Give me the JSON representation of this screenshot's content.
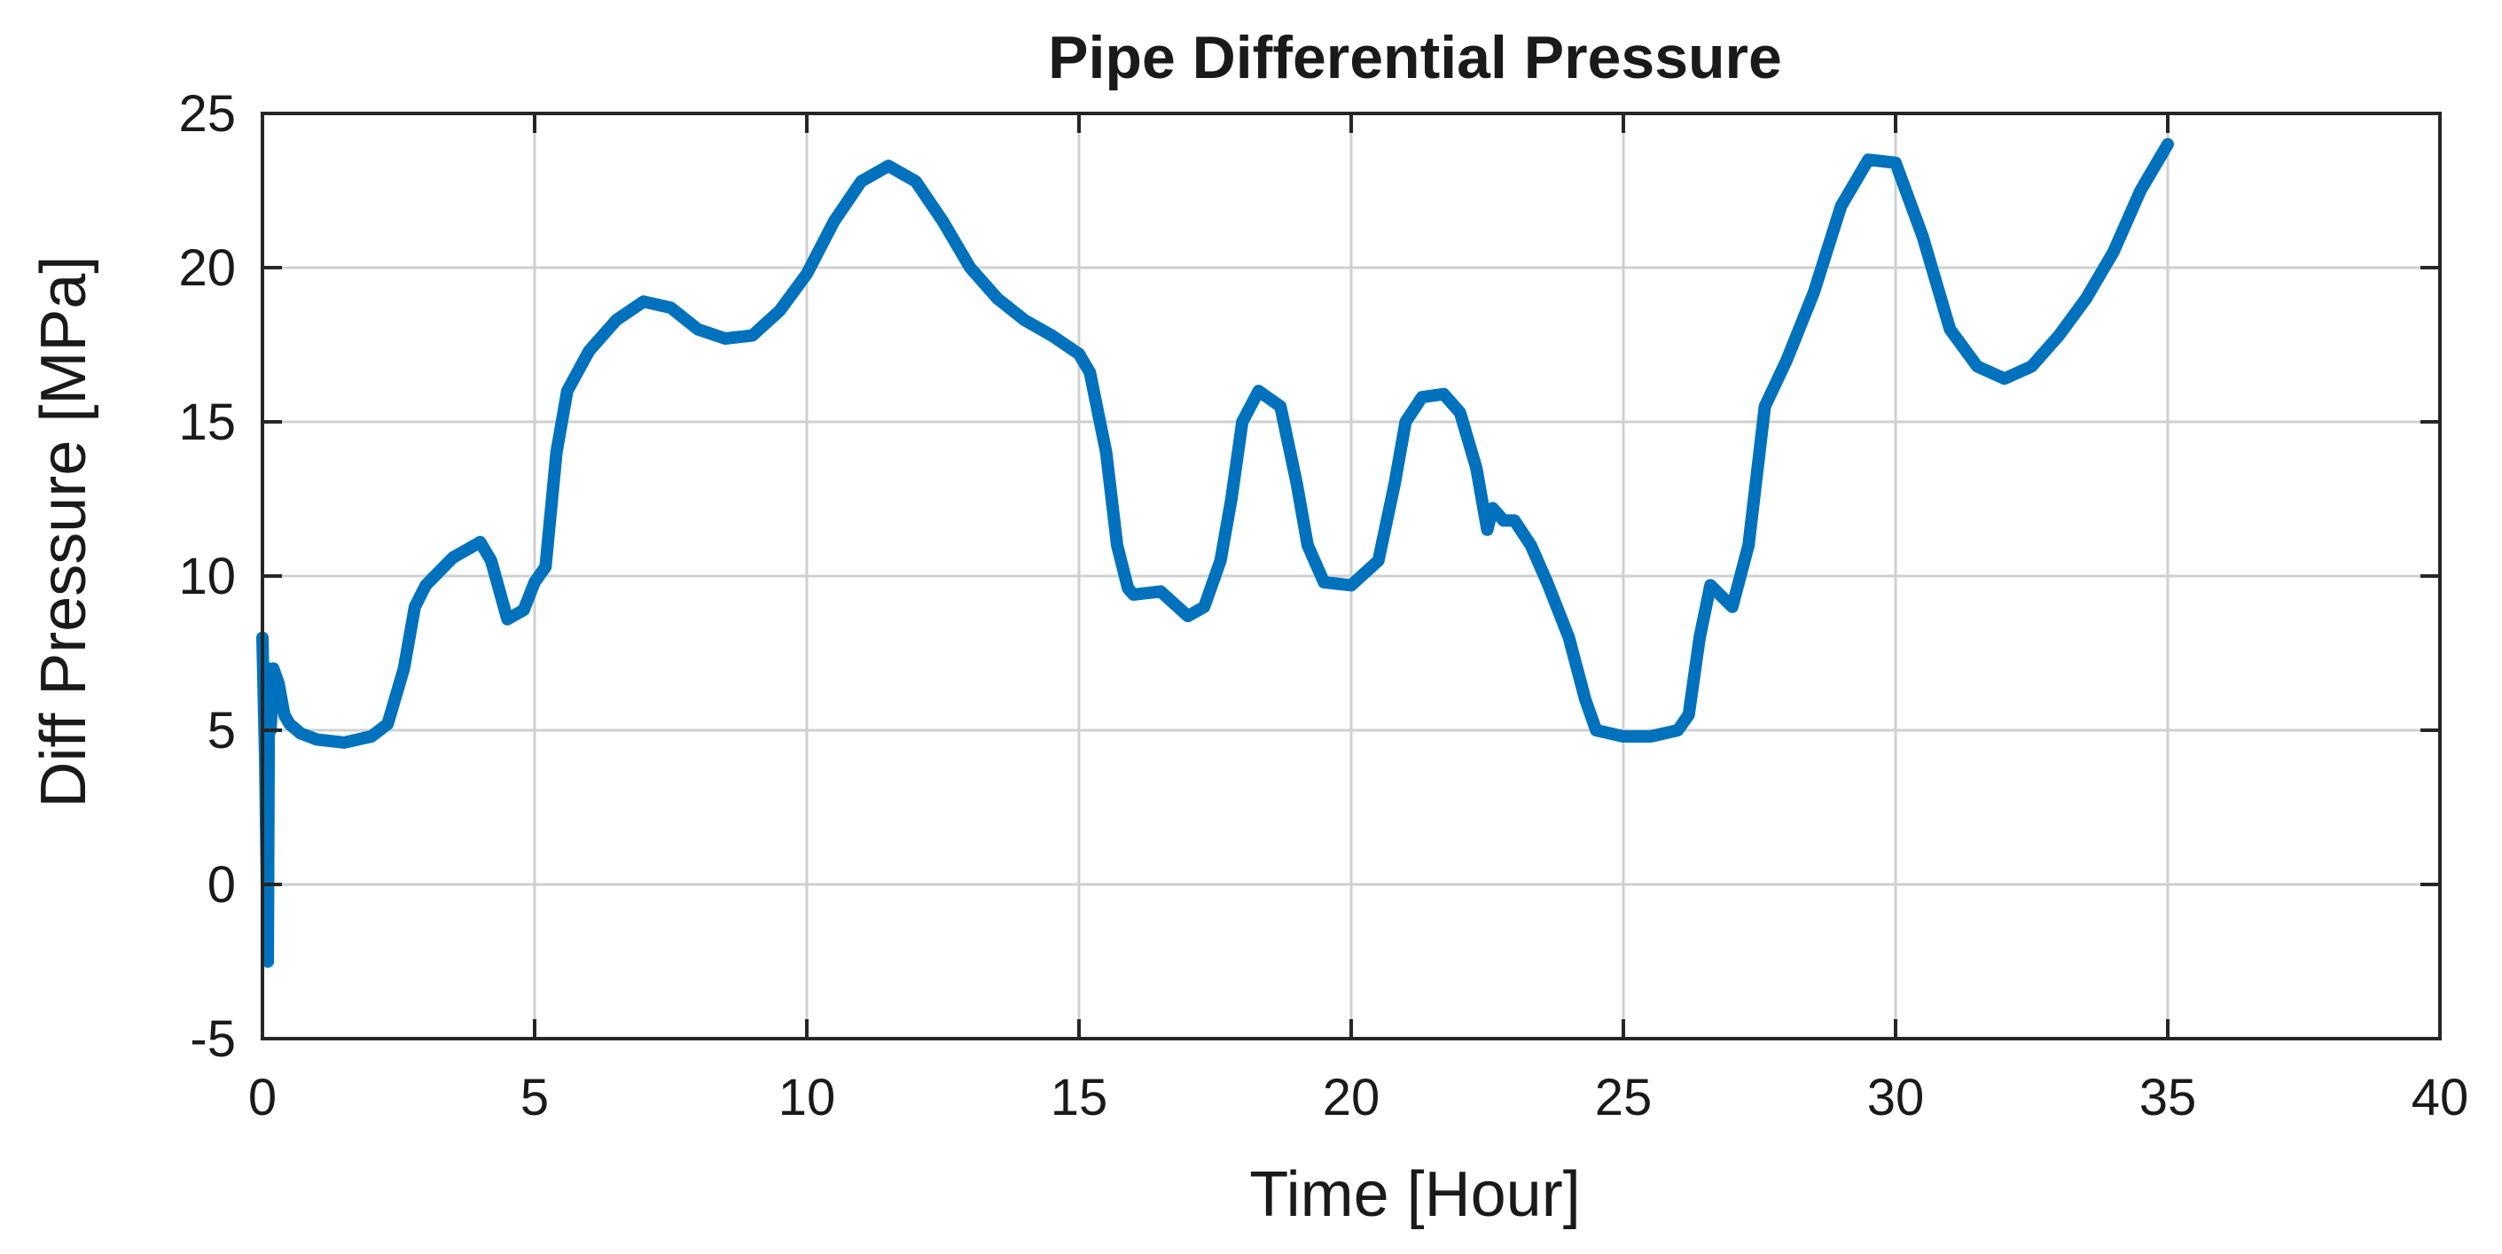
{
  "chart_data": {
    "type": "line",
    "title": "Pipe Differential Pressure",
    "xlabel": "Time [Hour]",
    "ylabel": "Diff Pressure [MPa]",
    "xlim": [
      0,
      40
    ],
    "ylim": [
      -5,
      25
    ],
    "xticks": [
      0,
      5,
      10,
      15,
      20,
      25,
      30,
      35,
      40
    ],
    "yticks": [
      -5,
      0,
      5,
      10,
      15,
      20,
      25
    ],
    "xtick_labels": [
      "0",
      "5",
      "10",
      "15",
      "20",
      "25",
      "30",
      "35",
      "40"
    ],
    "ytick_labels": [
      "-5",
      "0",
      "5",
      "10",
      "15",
      "20",
      "25"
    ],
    "grid": true,
    "series": [
      {
        "color": "#0072BD",
        "x": [
          0,
          0.05,
          0.1,
          0.12,
          0.15,
          0.2,
          0.3,
          0.4,
          0.5,
          0.7,
          1.0,
          1.5,
          2.0,
          2.3,
          2.6,
          2.8,
          3.0,
          3.5,
          4.0,
          4.2,
          4.5,
          4.8,
          5.0,
          5.2,
          5.4,
          5.6,
          6.0,
          6.5,
          7.0,
          7.5,
          8.0,
          8.5,
          9.0,
          9.5,
          10.0,
          10.5,
          11.0,
          11.5,
          12.0,
          12.5,
          13.0,
          13.5,
          14.0,
          14.5,
          15.0,
          15.2,
          15.5,
          15.7,
          15.9,
          16.0,
          16.5,
          17.0,
          17.3,
          17.6,
          17.8,
          18.0,
          18.3,
          18.7,
          19.0,
          19.2,
          19.5,
          20.0,
          20.5,
          20.8,
          21.0,
          21.3,
          21.7,
          22.0,
          22.3,
          22.5,
          22.6,
          22.8,
          23.0,
          23.3,
          23.6,
          24.0,
          24.3,
          24.5,
          25.0,
          25.5,
          26.0,
          26.2,
          26.4,
          26.6,
          27.0,
          27.3,
          27.6,
          28.0,
          28.5,
          29.0,
          29.5,
          30.0,
          30.5,
          31.0,
          31.5,
          32.0,
          32.5,
          33.0,
          33.5,
          34.0,
          34.5,
          35.0
        ],
        "y": [
          8,
          4,
          -2.5,
          7,
          5,
          7,
          6.5,
          5.5,
          5.2,
          4.9,
          4.7,
          4.6,
          4.8,
          5.2,
          7,
          9,
          9.7,
          10.6,
          11.1,
          10.5,
          8.6,
          8.9,
          9.8,
          10.3,
          14,
          16,
          17.3,
          18.3,
          18.9,
          18.7,
          18.0,
          17.7,
          17.8,
          18.6,
          19.8,
          21.5,
          22.8,
          23.3,
          22.8,
          21.5,
          20.0,
          19.0,
          18.3,
          17.8,
          17.2,
          16.6,
          14.0,
          11.0,
          9.6,
          9.4,
          9.5,
          8.7,
          9.0,
          10.5,
          12.5,
          15.0,
          16.0,
          15.5,
          13.0,
          11.0,
          9.8,
          9.7,
          10.5,
          13.0,
          15.0,
          15.8,
          15.9,
          15.3,
          13.5,
          11.5,
          12.2,
          11.8,
          11.8,
          11.0,
          9.8,
          8.0,
          6.0,
          5.0,
          4.8,
          4.8,
          5.0,
          5.5,
          8.0,
          9.7,
          9.0,
          11.0,
          15.5,
          17.0,
          19.2,
          22.0,
          23.5,
          23.4,
          21.0,
          18.0,
          16.8,
          16.4,
          16.8,
          17.8,
          19.0,
          20.5,
          22.5,
          24.0
        ]
      }
    ]
  }
}
